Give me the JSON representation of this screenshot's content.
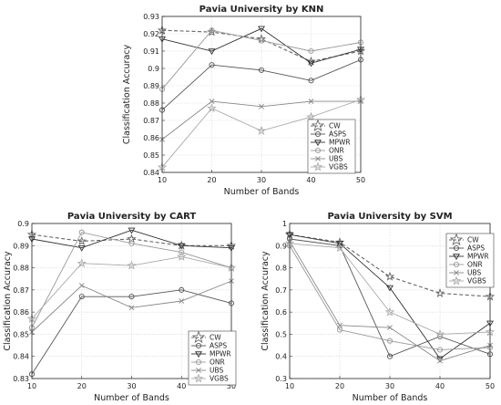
{
  "chart_data": [
    {
      "type": "line",
      "title": "Pavia University by KNN",
      "xlabel": "Number of Bands",
      "ylabel": "Classification Accuracy",
      "x": [
        10,
        20,
        30,
        40,
        50
      ],
      "xlim": [
        10,
        50
      ],
      "xticks": [
        "10",
        "20",
        "30",
        "40",
        "50"
      ],
      "ylim": [
        0.84,
        0.93
      ],
      "yticks": [
        "0.84",
        "0.85",
        "0.86",
        "0.87",
        "0.88",
        "0.89",
        "0.9",
        "0.91",
        "0.92",
        "0.93"
      ],
      "grid": true,
      "legend_position": "bottom-right",
      "series": [
        {
          "name": "CW",
          "values": [
            0.922,
            0.921,
            0.917,
            0.904,
            0.91
          ],
          "color": "#666666",
          "dash": true,
          "marker": "star"
        },
        {
          "name": "ASPS",
          "values": [
            0.876,
            0.902,
            0.899,
            0.893,
            0.905
          ],
          "color": "#555555",
          "dash": false,
          "marker": "circle"
        },
        {
          "name": "MPWR",
          "values": [
            0.917,
            0.91,
            0.923,
            0.903,
            0.911
          ],
          "color": "#333333",
          "dash": false,
          "marker": "tri-down"
        },
        {
          "name": "ONR",
          "values": [
            0.888,
            0.922,
            0.916,
            0.91,
            0.915
          ],
          "color": "#999999",
          "dash": false,
          "marker": "circle"
        },
        {
          "name": "UBS",
          "values": [
            0.859,
            0.881,
            0.878,
            0.881,
            0.881
          ],
          "color": "#888888",
          "dash": false,
          "marker": "x"
        },
        {
          "name": "VGBS",
          "values": [
            0.843,
            0.877,
            0.864,
            0.872,
            0.882
          ],
          "color": "#aaaaaa",
          "dash": false,
          "marker": "star"
        }
      ]
    },
    {
      "type": "line",
      "title": "Pavia University by CART",
      "xlabel": "Number of Bands",
      "ylabel": "Classification Accuracy",
      "x": [
        10,
        20,
        30,
        40,
        50
      ],
      "xlim": [
        10,
        50
      ],
      "xticks": [
        "10",
        "20",
        "30",
        "40",
        "50"
      ],
      "ylim": [
        0.83,
        0.9
      ],
      "yticks": [
        "0.83",
        "0.84",
        "0.85",
        "0.86",
        "0.87",
        "0.88",
        "0.89",
        "0.9"
      ],
      "grid": true,
      "legend_position": "bottom-right",
      "series": [
        {
          "name": "CW",
          "values": [
            0.895,
            0.892,
            0.893,
            0.89,
            0.89
          ],
          "color": "#666666",
          "dash": true,
          "marker": "star"
        },
        {
          "name": "ASPS",
          "values": [
            0.832,
            0.867,
            0.867,
            0.87,
            0.864
          ],
          "color": "#555555",
          "dash": false,
          "marker": "circle"
        },
        {
          "name": "MPWR",
          "values": [
            0.893,
            0.889,
            0.897,
            0.89,
            0.889
          ],
          "color": "#333333",
          "dash": false,
          "marker": "tri-down"
        },
        {
          "name": "ONR",
          "values": [
            0.853,
            0.896,
            0.891,
            0.887,
            0.88
          ],
          "color": "#999999",
          "dash": false,
          "marker": "circle"
        },
        {
          "name": "UBS",
          "values": [
            0.851,
            0.872,
            0.862,
            0.865,
            0.874
          ],
          "color": "#888888",
          "dash": false,
          "marker": "x"
        },
        {
          "name": "VGBS",
          "values": [
            0.857,
            0.882,
            0.881,
            0.885,
            0.88
          ],
          "color": "#aaaaaa",
          "dash": false,
          "marker": "star"
        }
      ]
    },
    {
      "type": "line",
      "title": "Pavia University by SVM",
      "xlabel": "Number of Bands",
      "ylabel": "Classification Accuracy",
      "x": [
        10,
        20,
        30,
        40,
        50
      ],
      "xlim": [
        10,
        50
      ],
      "xticks": [
        "10",
        "20",
        "30",
        "40",
        "50"
      ],
      "ylim": [
        0.3,
        1
      ],
      "yticks": [
        "0.3",
        "0.4",
        "0.5",
        "0.6",
        "0.7",
        "0.8",
        "0.9",
        "1"
      ],
      "grid": true,
      "legend_position": "top-right",
      "series": [
        {
          "name": "CW",
          "values": [
            0.95,
            0.915,
            0.76,
            0.685,
            0.67
          ],
          "color": "#666666",
          "dash": true,
          "marker": "star"
        },
        {
          "name": "ASPS",
          "values": [
            0.93,
            0.9,
            0.4,
            0.49,
            0.41
          ],
          "color": "#555555",
          "dash": false,
          "marker": "circle"
        },
        {
          "name": "MPWR",
          "values": [
            0.95,
            0.91,
            0.71,
            0.39,
            0.55
          ],
          "color": "#333333",
          "dash": false,
          "marker": "tri-down"
        },
        {
          "name": "ONR",
          "values": [
            0.9,
            0.52,
            0.47,
            0.43,
            0.44
          ],
          "color": "#999999",
          "dash": false,
          "marker": "circle"
        },
        {
          "name": "UBS",
          "values": [
            0.92,
            0.54,
            0.53,
            0.38,
            0.45
          ],
          "color": "#888888",
          "dash": false,
          "marker": "x"
        },
        {
          "name": "VGBS",
          "values": [
            0.91,
            0.89,
            0.6,
            0.5,
            0.51
          ],
          "color": "#aaaaaa",
          "dash": false,
          "marker": "star"
        }
      ]
    }
  ]
}
